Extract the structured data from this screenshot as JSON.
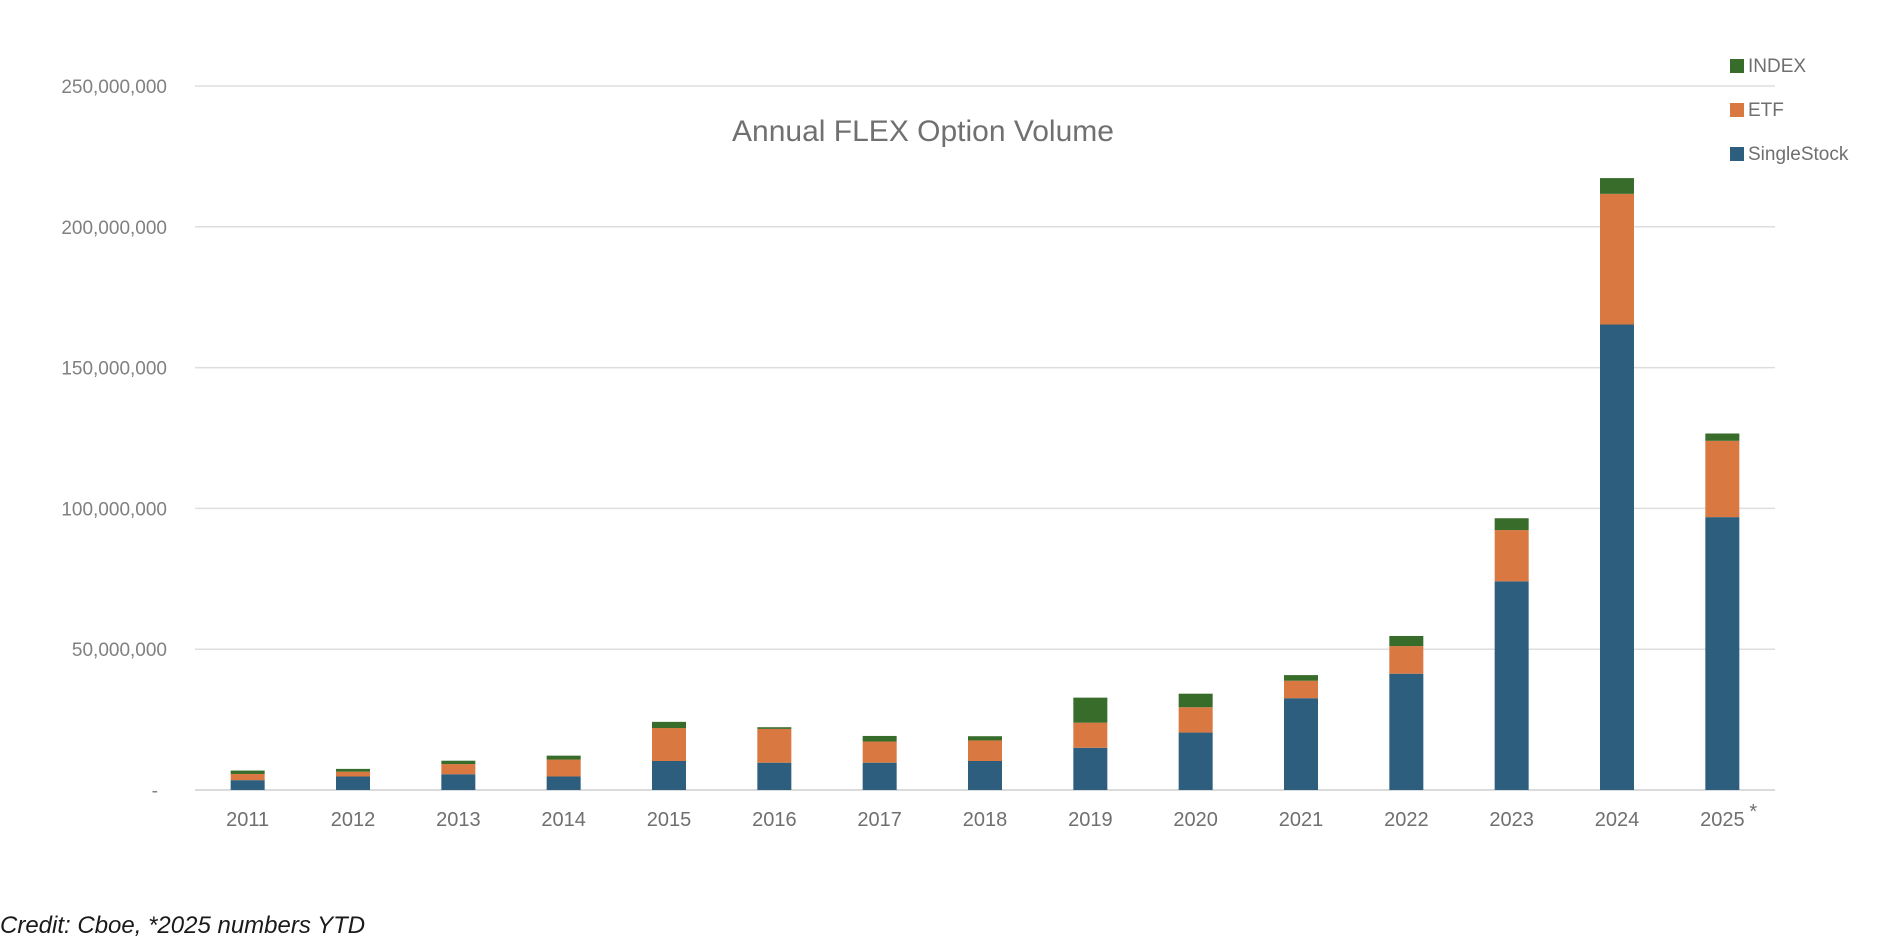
{
  "chart_data": {
    "type": "bar",
    "stacked": true,
    "title": "Annual FLEX Option Volume",
    "xlabel": "",
    "ylabel": "",
    "ylim": [
      0,
      250000000
    ],
    "ytick_labels": [
      "-",
      "50,000,000",
      "100,000,000",
      "150,000,000",
      "200,000,000",
      "250,000,000"
    ],
    "ytick_values": [
      0,
      50000000,
      100000000,
      150000000,
      200000000,
      250000000
    ],
    "categories": [
      "2011",
      "2012",
      "2013",
      "2014",
      "2015",
      "2016",
      "2017",
      "2018",
      "2019",
      "2020",
      "2021",
      "2022",
      "2023",
      "2024",
      "2025"
    ],
    "category_markers": [
      "",
      "",
      "",
      "",
      "",
      "",
      "",
      "",
      "",
      "",
      "",
      "",
      "",
      "",
      "*"
    ],
    "grid": true,
    "legend_position": "top-right",
    "series": [
      {
        "name": "SingleStock",
        "color": "#2e5e7e",
        "values": [
          3500000,
          4800000,
          5600000,
          4800000,
          10300000,
          9700000,
          9700000,
          10300000,
          15000000,
          20400000,
          32600000,
          41300000,
          74100000,
          165300000,
          96900000
        ]
      },
      {
        "name": "ETF",
        "color": "#d97840",
        "values": [
          2200000,
          1700000,
          3600000,
          6000000,
          11700000,
          12000000,
          7500000,
          7300000,
          8900000,
          9000000,
          6200000,
          9800000,
          18200000,
          46400000,
          27100000
        ]
      },
      {
        "name": "INDEX",
        "color": "#386c2b",
        "values": [
          1200000,
          1000000,
          1200000,
          1400000,
          2200000,
          600000,
          2000000,
          1500000,
          8900000,
          4800000,
          2000000,
          3600000,
          4200000,
          5600000,
          2600000
        ]
      }
    ],
    "legend_order": [
      "INDEX",
      "ETF",
      "SingleStock"
    ]
  },
  "credit": "Credit: Cboe, *2025 numbers YTD"
}
